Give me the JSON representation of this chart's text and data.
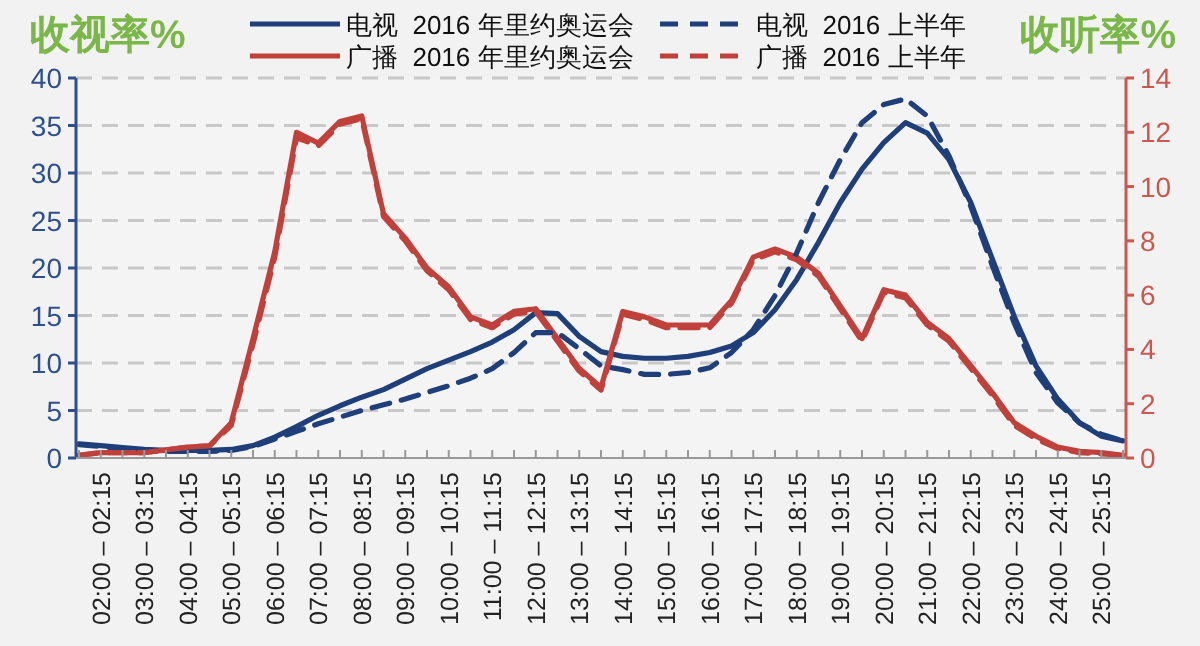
{
  "chart_data": {
    "type": "line",
    "categories": [
      null,
      "02:00 – 02:15",
      null,
      "03:00 – 03:15",
      null,
      "04:00 – 04:15",
      null,
      "05:00 – 05:15",
      null,
      "06:00 – 06:15",
      null,
      "07:00 – 07:15",
      null,
      "08:00 – 08:15",
      null,
      "09:00 – 09:15",
      null,
      "10:00 – 10:15",
      null,
      "11:00 – 11:15",
      null,
      "12:00 – 12:15",
      null,
      "13:00 – 13:15",
      null,
      "14:00 – 14:15",
      null,
      "15:00 – 15:15",
      null,
      "16:00 – 16:15",
      null,
      "17:00 – 17:15",
      null,
      "18:00 – 18:15",
      null,
      "19:00 – 19:15",
      null,
      "20:00 – 20:15",
      null,
      "21:00 – 21:15",
      null,
      "22:00 – 22:15",
      null,
      "23:00 – 23:15",
      null,
      "24:00 – 24:15",
      null,
      "25:00 – 25:15",
      null
    ],
    "series": [
      {
        "name": "电视  2016 年里约奥运会",
        "color": "#1f3f7a",
        "axis": "y",
        "line_style": "solid",
        "values": [
          1.5,
          1.3,
          1.1,
          0.9,
          0.8,
          0.8,
          0.8,
          0.9,
          1.3,
          2.2,
          3.3,
          4.5,
          5.5,
          6.4,
          7.2,
          8.3,
          9.4,
          10.3,
          11.2,
          12.2,
          13.5,
          15.3,
          15.2,
          12.8,
          11.2,
          10.7,
          10.5,
          10.5,
          10.7,
          11.1,
          11.8,
          13.2,
          15.6,
          18.8,
          22.7,
          26.9,
          30.4,
          33.2,
          35.3,
          34.2,
          31.4,
          26.9,
          20.9,
          14.9,
          9.7,
          6.2,
          3.7,
          2.3,
          1.8
        ]
      },
      {
        "name": "广播  2016 年里约奥运会",
        "color": "#c0413b",
        "axis": "y2",
        "line_style": "solid",
        "values": [
          0.1,
          0.2,
          0.2,
          0.2,
          0.3,
          0.4,
          0.45,
          1.3,
          4.4,
          7.6,
          12.0,
          11.6,
          12.4,
          12.6,
          9.0,
          8.1,
          7.0,
          6.3,
          5.2,
          4.9,
          5.4,
          5.5,
          4.4,
          3.3,
          2.6,
          5.4,
          5.2,
          4.9,
          4.9,
          4.9,
          5.8,
          7.4,
          7.7,
          7.4,
          6.8,
          5.6,
          4.4,
          6.2,
          6.0,
          5.0,
          4.4,
          3.4,
          2.4,
          1.3,
          0.8,
          0.4,
          0.25,
          0.2,
          0.1
        ]
      },
      {
        "name": "电视  2016 上半年",
        "color": "#1f3f7a",
        "axis": "y",
        "line_style": "dashed",
        "values": [
          1.4,
          1.2,
          1.0,
          0.8,
          0.7,
          0.7,
          0.7,
          0.8,
          1.2,
          2.0,
          2.8,
          3.6,
          4.3,
          5.0,
          5.6,
          6.2,
          6.9,
          7.6,
          8.4,
          9.4,
          11.1,
          13.2,
          13.2,
          11.5,
          9.7,
          9.3,
          8.8,
          8.8,
          9.0,
          9.5,
          11.1,
          13.5,
          17.1,
          21.6,
          26.9,
          31.4,
          35.3,
          37.2,
          37.8,
          36.0,
          31.8,
          26.5,
          20.2,
          14.2,
          9.0,
          5.8,
          3.7,
          2.5,
          1.8
        ]
      },
      {
        "name": "广播  2016 上半年",
        "color": "#c0413b",
        "axis": "y2",
        "line_style": "dashed",
        "values": [
          0.1,
          0.2,
          0.2,
          0.2,
          0.3,
          0.4,
          0.45,
          1.2,
          4.2,
          7.4,
          11.8,
          11.5,
          12.3,
          12.5,
          8.9,
          8.0,
          6.9,
          6.2,
          5.1,
          4.8,
          5.3,
          5.4,
          4.3,
          3.2,
          2.5,
          5.3,
          5.1,
          4.8,
          4.8,
          4.8,
          5.7,
          7.3,
          7.6,
          7.3,
          6.7,
          5.5,
          4.3,
          6.1,
          5.9,
          4.9,
          4.3,
          3.3,
          2.3,
          1.2,
          0.7,
          0.35,
          0.2,
          0.15,
          0.1
        ]
      }
    ],
    "ylabel": "收视率%",
    "y2label": "收听率%",
    "ylim": [
      0,
      40
    ],
    "yticks": [
      0,
      5,
      10,
      15,
      20,
      25,
      30,
      35,
      40
    ],
    "y2lim": [
      0,
      14
    ],
    "y2ticks": [
      0,
      2,
      4,
      6,
      8,
      10,
      12,
      14
    ],
    "grid": "y",
    "legend": "top"
  }
}
